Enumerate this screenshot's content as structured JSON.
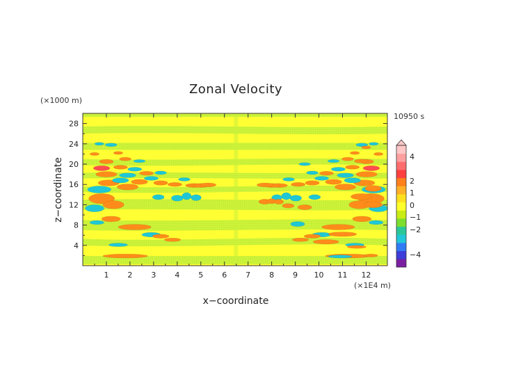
{
  "chart_data": {
    "type": "heatmap",
    "title": "Zonal Velocity",
    "xlabel": "x−coordinate",
    "ylabel": "z−coordinate",
    "x_units": "(×1E4 m)",
    "y_units": "(×1000 m)",
    "time_label": "10950 s",
    "xlim": [
      0,
      12.9
    ],
    "ylim": [
      0,
      30
    ],
    "x_ticks": [
      "1",
      "2",
      "3",
      "4",
      "5",
      "6",
      "7",
      "8",
      "9",
      "10",
      "11",
      "12"
    ],
    "y_ticks": [
      "4",
      "8",
      "12",
      "16",
      "20",
      "24",
      "28"
    ],
    "colorbar": {
      "levels": [
        "4",
        "2",
        "1",
        "0",
        "−1",
        "−2",
        "−4"
      ],
      "colors": [
        "#7a1fa2",
        "#3d3dd8",
        "#2f7bf5",
        "#21c6d8",
        "#29c79a",
        "#7dde2e",
        "#c8ec14",
        "#ffff2a",
        "#ffe01e",
        "#ffb026",
        "#ff7f1c",
        "#ff4040",
        "#ff6e6e",
        "#ffa0a0",
        "#ffc8c8"
      ]
    },
    "background_level": "0",
    "note": "Wave-like positive (orange) and negative (cyan) velocity anomalies arranged symmetrically about x≈6.5E4 m, concentrated between z≈2000 m and 22000 m."
  }
}
